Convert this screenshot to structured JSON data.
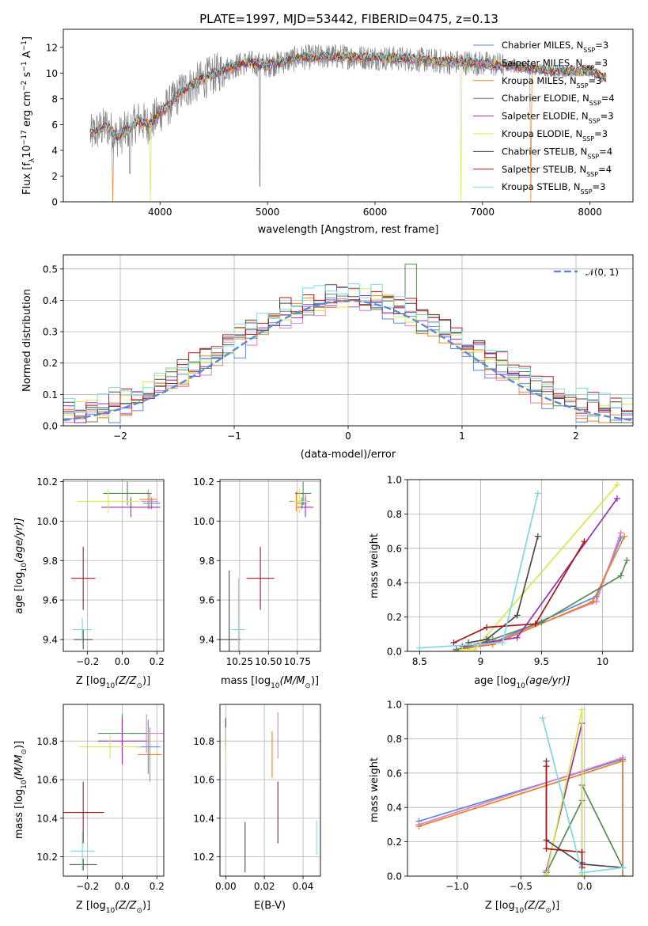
{
  "figure_title": "PLATE=1997, MJD=53442, FIBERID=0475, z=0.13",
  "legend_entries": [
    {
      "name": "Chabrier MILES, N",
      "sub": "SSP",
      "suffix": "=3",
      "color": "#5b8bd8"
    },
    {
      "name": "Salpeter MILES, N",
      "sub": "SSP",
      "suffix": "=3",
      "color": "#e07fc1"
    },
    {
      "name": "Kroupa MILES, N",
      "sub": "SSP",
      "suffix": "=3",
      "color": "#e8822a"
    },
    {
      "name": "Chabrier ELODIE, N",
      "sub": "SSP",
      "suffix": "=4",
      "color": "#5a8a5a"
    },
    {
      "name": "Salpeter ELODIE, N",
      "sub": "SSP",
      "suffix": "=3",
      "color": "#9a2fb0"
    },
    {
      "name": "Kroupa ELODIE, N",
      "sub": "SSP",
      "suffix": "=3",
      "color": "#d8e84a"
    },
    {
      "name": "Chabrier STELIB, N",
      "sub": "SSP",
      "suffix": "=4",
      "color": "#4a4a4a"
    },
    {
      "name": "Salpeter STELIB, N",
      "sub": "SSP",
      "suffix": "=4",
      "color": "#a81818"
    },
    {
      "name": "Kroupa STELIB, N",
      "sub": "SSP",
      "suffix": "=3",
      "color": "#7fd8de"
    }
  ],
  "chart_data": [
    {
      "id": "spectrum",
      "type": "line",
      "xlabel": "wavelength [Angstrom, rest frame]",
      "ylabel_parts": [
        "Flux [f",
        "λ",
        "10",
        "−17",
        " erg cm",
        "−2",
        " s",
        "−1",
        " A",
        "−1",
        "]"
      ],
      "xlim": [
        3100,
        8400
      ],
      "ylim": [
        0,
        13.4
      ],
      "xticks": [
        4000,
        5000,
        6000,
        7000,
        8000
      ],
      "yticks": [
        0,
        2,
        4,
        6,
        8,
        10,
        12
      ],
      "data_color": "#808080",
      "continuum_x": [
        3350,
        3500,
        3600,
        3700,
        3800,
        3900,
        4000,
        4100,
        4200,
        4400,
        4600,
        4800,
        5000,
        5300,
        5600,
        6000,
        6300,
        6600,
        6900,
        7200,
        7500,
        7800,
        8000,
        8150
      ],
      "continuum_y": [
        5.2,
        5.9,
        5.0,
        5.6,
        6.3,
        6.0,
        6.9,
        7.6,
        8.6,
        9.5,
        10.3,
        10.8,
        10.6,
        11.2,
        11.3,
        11.2,
        11.1,
        10.9,
        10.8,
        10.6,
        10.3,
        10.1,
        10.2,
        9.6
      ],
      "data_span_x": [
        3350,
        8150
      ],
      "model_span_x": [
        3350,
        8150
      ],
      "series_dips": [
        {
          "series": "Kroupa MILES",
          "x": 3560,
          "y": 0
        },
        {
          "series": "Kroupa ELODIE",
          "x": 3910,
          "y": 0
        },
        {
          "series": "Kroupa ELODIE",
          "x": 6800,
          "y": 0
        },
        {
          "series": "Kroupa MILES",
          "x": 7450,
          "y": 0
        }
      ]
    },
    {
      "id": "residuals",
      "type": "step",
      "xlabel": "(data-model)/error",
      "ylabel": "Normed distribution",
      "xlim": [
        -2.5,
        2.5
      ],
      "ylim": [
        0,
        0.545
      ],
      "xticks": [
        -2,
        -1,
        0,
        1,
        2
      ],
      "yticks": [
        0,
        0.1,
        0.2,
        0.3,
        0.4,
        0.5
      ],
      "bin_width": 0.1,
      "histogram_series_count": 9,
      "reference_curve": {
        "name": "N(0,1)",
        "label_math": "𝒩(0, 1)",
        "mean": 0,
        "sigma": 1,
        "color": "#5b8bd8",
        "dashed": true
      },
      "legend_position": "upper right"
    },
    {
      "id": "age_vs_Z",
      "type": "errorbar",
      "xlabel_parts": [
        "Z [log",
        "10",
        "(Z/Z",
        "⊙",
        ")]"
      ],
      "ylabel_parts": [
        "age  [log",
        "10",
        "(age/yr)]"
      ],
      "xlim": [
        -0.34,
        0.24
      ],
      "ylim": [
        9.34,
        10.21
      ],
      "xticks": [
        -0.2,
        0.0,
        0.2
      ],
      "xtick_labels": [
        "−0.2",
        "0.0",
        "0.2"
      ],
      "yticks": [
        9.4,
        9.6,
        9.8,
        10.0,
        10.2
      ],
      "points": [
        {
          "series": "Chabrier MILES",
          "x": 0.17,
          "y": 10.09,
          "xerr": 0.05,
          "yerr": 0.03
        },
        {
          "series": "Salpeter MILES",
          "x": 0.16,
          "y": 10.1,
          "xerr": 0.05,
          "yerr": 0.04
        },
        {
          "series": "Kroupa MILES",
          "x": 0.15,
          "y": 10.11,
          "xerr": 0.05,
          "yerr": 0.05
        },
        {
          "series": "Chabrier ELODIE",
          "x": 0.03,
          "y": 10.14,
          "xerr": 0.14,
          "yerr": 0.06
        },
        {
          "series": "Salpeter ELODIE",
          "x": 0.05,
          "y": 10.07,
          "xerr": 0.17,
          "yerr": 0.05
        },
        {
          "series": "Kroupa ELODIE",
          "x": -0.08,
          "y": 10.1,
          "xerr": 0.18,
          "yerr": 0.06
        },
        {
          "series": "Chabrier STELIB",
          "x": -0.225,
          "y": 9.4,
          "xerr": 0.055,
          "yerr": 0.05
        },
        {
          "series": "Salpeter STELIB",
          "x": -0.225,
          "y": 9.71,
          "xerr": 0.07,
          "yerr": 0.16
        },
        {
          "series": "Kroupa STELIB",
          "x": -0.23,
          "y": 9.45,
          "xerr": 0.055,
          "yerr": 0.06
        }
      ]
    },
    {
      "id": "age_vs_mass",
      "type": "errorbar",
      "xlabel_parts": [
        "mass [log",
        "10",
        "(M/M",
        "⊙",
        ")]"
      ],
      "ylabel": "",
      "xlim": [
        10.08,
        10.95
      ],
      "ylim": [
        9.34,
        10.21
      ],
      "xticks": [
        10.25,
        10.5,
        10.75
      ],
      "xtick_labels": [
        "10.25",
        "10.50",
        "10.75"
      ],
      "yticks": [
        9.4,
        9.6,
        9.8,
        10.0,
        10.2
      ],
      "points": [
        {
          "series": "Chabrier MILES",
          "x": 10.79,
          "y": 10.09,
          "xerr": 0.04,
          "yerr": 0.03
        },
        {
          "series": "Salpeter MILES",
          "x": 10.82,
          "y": 10.1,
          "xerr": 0.04,
          "yerr": 0.04
        },
        {
          "series": "Kroupa MILES",
          "x": 10.74,
          "y": 10.1,
          "xerr": 0.06,
          "yerr": 0.05
        },
        {
          "series": "Chabrier ELODIE",
          "x": 10.8,
          "y": 10.14,
          "xerr": 0.07,
          "yerr": 0.06
        },
        {
          "series": "Salpeter ELODIE",
          "x": 10.82,
          "y": 10.07,
          "xerr": 0.07,
          "yerr": 0.05
        },
        {
          "series": "Kroupa ELODIE",
          "x": 10.77,
          "y": 10.1,
          "xerr": 0.06,
          "yerr": 0.06
        },
        {
          "series": "Chabrier STELIB",
          "x": 10.16,
          "y": 9.4,
          "xerr": 0.1,
          "yerr": 0.35
        },
        {
          "series": "Salpeter STELIB",
          "x": 10.43,
          "y": 9.71,
          "xerr": 0.12,
          "yerr": 0.16
        },
        {
          "series": "Kroupa STELIB",
          "x": 10.24,
          "y": 9.45,
          "xerr": 0.06,
          "yerr": 0.26
        }
      ]
    },
    {
      "id": "weight_vs_age",
      "type": "line",
      "xlabel_parts": [
        "age  [log",
        "10",
        "(age/yr)]"
      ],
      "ylabel": "mass weight",
      "xlim": [
        8.4,
        10.25
      ],
      "ylim": [
        0,
        1.0
      ],
      "xticks": [
        8.5,
        9.0,
        9.5,
        10.0
      ],
      "yticks": [
        0,
        0.2,
        0.4,
        0.6,
        0.8,
        1.0
      ],
      "series": [
        {
          "name": "Chabrier MILES",
          "x": [
            8.8,
            9.1,
            9.95,
            10.15
          ],
          "y": [
            0.01,
            0.05,
            0.32,
            0.66
          ]
        },
        {
          "name": "Salpeter MILES",
          "x": [
            8.78,
            9.1,
            9.95,
            10.15
          ],
          "y": [
            0.0,
            0.05,
            0.29,
            0.69
          ]
        },
        {
          "name": "Kroupa MILES",
          "x": [
            8.8,
            9.1,
            9.92,
            10.18
          ],
          "y": [
            0.01,
            0.04,
            0.29,
            0.67
          ]
        },
        {
          "name": "Chabrier ELODIE",
          "x": [
            8.8,
            9.1,
            9.5,
            10.15,
            10.2
          ],
          "y": [
            0.01,
            0.07,
            0.17,
            0.44,
            0.53
          ]
        },
        {
          "name": "Salpeter ELODIE",
          "x": [
            8.85,
            9.3,
            10.12
          ],
          "y": [
            0.03,
            0.08,
            0.89
          ]
        },
        {
          "name": "Kroupa ELODIE",
          "x": [
            8.85,
            8.95,
            10.12
          ],
          "y": [
            0.01,
            0.01,
            0.97
          ]
        },
        {
          "name": "Chabrier STELIB",
          "x": [
            8.9,
            9.05,
            9.3,
            9.47
          ],
          "y": [
            0.05,
            0.07,
            0.21,
            0.67
          ]
        },
        {
          "name": "Salpeter STELIB",
          "x": [
            8.78,
            9.05,
            9.45,
            9.85
          ],
          "y": [
            0.05,
            0.14,
            0.16,
            0.64
          ]
        },
        {
          "name": "Kroupa STELIB",
          "x": [
            8.5,
            9.18,
            9.47
          ],
          "y": [
            0.02,
            0.05,
            0.92
          ]
        }
      ]
    },
    {
      "id": "mass_vs_Z",
      "type": "errorbar",
      "xlabel_parts": [
        "Z [log",
        "10",
        "(Z/Z",
        "⊙",
        ")]"
      ],
      "ylabel_parts": [
        "mass [log",
        "10",
        "(M/M",
        "⊙",
        ")]"
      ],
      "xlim": [
        -0.34,
        0.24
      ],
      "ylim": [
        10.1,
        10.99
      ],
      "xticks": [
        -0.2,
        0.0,
        0.2
      ],
      "xtick_labels": [
        "−0.2",
        "0.0",
        "0.2"
      ],
      "yticks": [
        10.2,
        10.4,
        10.6,
        10.8
      ],
      "points": [
        {
          "series": "Chabrier MILES",
          "x": 0.15,
          "y": 10.77,
          "xerr": 0.07,
          "yerr": 0.14
        },
        {
          "series": "Salpeter MILES",
          "x": 0.14,
          "y": 10.84,
          "xerr": 0.1,
          "yerr": 0.1
        },
        {
          "series": "Kroupa MILES",
          "x": 0.16,
          "y": 10.73,
          "xerr": 0.07,
          "yerr": 0.14
        },
        {
          "series": "Chabrier ELODIE",
          "x": 0.0,
          "y": 10.84,
          "xerr": 0.14,
          "yerr": 0.1
        },
        {
          "series": "Salpeter ELODIE",
          "x": 0.0,
          "y": 10.8,
          "xerr": 0.14,
          "yerr": 0.12
        },
        {
          "series": "Kroupa ELODIE",
          "x": -0.07,
          "y": 10.77,
          "xerr": 0.18,
          "yerr": 0.06
        },
        {
          "series": "Chabrier STELIB",
          "x": -0.225,
          "y": 10.16,
          "xerr": 0.08,
          "yerr": 0.03
        },
        {
          "series": "Salpeter STELIB",
          "x": -0.225,
          "y": 10.43,
          "xerr": 0.12,
          "yerr": 0.16
        },
        {
          "series": "Kroupa STELIB",
          "x": -0.23,
          "y": 10.23,
          "xerr": 0.07,
          "yerr": 0.1
        }
      ]
    },
    {
      "id": "mass_vs_ebv",
      "type": "errorbar",
      "xlabel": "E(B-V)",
      "ylabel": "",
      "xlim": [
        -0.003,
        0.049
      ],
      "ylim": [
        10.1,
        10.99
      ],
      "xticks": [
        0.0,
        0.02,
        0.04
      ],
      "xtick_labels": [
        "0.00",
        "0.02",
        "0.04"
      ],
      "yticks": [
        10.2,
        10.4,
        10.6,
        10.8
      ],
      "points": [
        {
          "series": "Chabrier MILES",
          "x": 0.0,
          "y": 10.84,
          "xerr": 0,
          "yerr": 0.05
        },
        {
          "series": "Salpeter MILES",
          "x": 0.027,
          "y": 10.83,
          "xerr": 0,
          "yerr": 0.12
        },
        {
          "series": "Kroupa MILES",
          "x": 0.024,
          "y": 10.73,
          "xerr": 0,
          "yerr": 0.12
        },
        {
          "series": "Chabrier ELODIE",
          "x": 0.0,
          "y": 10.84,
          "xerr": 0,
          "yerr": 0.08
        },
        {
          "series": "Salpeter ELODIE",
          "x": 0.0,
          "y": 10.85,
          "xerr": 0,
          "yerr": 0.07
        },
        {
          "series": "Kroupa ELODIE",
          "x": 0.0,
          "y": 10.77,
          "xerr": 0,
          "yerr": 0.1
        },
        {
          "series": "Chabrier STELIB",
          "x": 0.01,
          "y": 10.25,
          "xerr": 0,
          "yerr": 0.13
        },
        {
          "series": "Salpeter STELIB",
          "x": 0.027,
          "y": 10.43,
          "xerr": 0,
          "yerr": 0.16
        },
        {
          "series": "Kroupa STELIB",
          "x": 0.047,
          "y": 10.3,
          "xerr": 0,
          "yerr": 0.09
        }
      ]
    },
    {
      "id": "weight_vs_Z",
      "type": "line",
      "xlabel_parts": [
        "Z [log",
        "10",
        "(Z/Z",
        "⊙",
        ")]"
      ],
      "ylabel": "mass weight",
      "xlim": [
        -1.39,
        0.38
      ],
      "ylim": [
        0,
        1.0
      ],
      "xticks": [
        -1.0,
        -0.5,
        0.0
      ],
      "xtick_labels": [
        "−1.0",
        "−0.5",
        "0.0"
      ],
      "yticks": [
        0,
        0.2,
        0.4,
        0.6,
        0.8,
        1.0
      ],
      "series": [
        {
          "name": "Chabrier MILES",
          "x": [
            -1.3,
            0.3,
            0.3
          ],
          "y": [
            0.32,
            0.68,
            0.0
          ]
        },
        {
          "name": "Salpeter MILES",
          "x": [
            -1.3,
            0.3,
            0.3
          ],
          "y": [
            0.3,
            0.69,
            0.0
          ]
        },
        {
          "name": "Kroupa MILES",
          "x": [
            -1.3,
            0.3,
            0.3
          ],
          "y": [
            0.29,
            0.67,
            0.0
          ]
        },
        {
          "name": "Chabrier ELODIE",
          "x": [
            -0.3,
            -0.3,
            -0.02,
            -0.02,
            0.3
          ],
          "y": [
            0.0,
            0.02,
            0.44,
            0.53,
            0.05
          ]
        },
        {
          "name": "Salpeter ELODIE",
          "x": [
            -0.3,
            -0.02,
            -0.02
          ],
          "y": [
            0.03,
            0.89,
            0.08
          ]
        },
        {
          "name": "Kroupa ELODIE",
          "x": [
            -0.3,
            -0.3,
            -0.02,
            -0.02
          ],
          "y": [
            0.0,
            0.01,
            0.97,
            0.01
          ]
        },
        {
          "name": "Chabrier STELIB",
          "x": [
            -0.3,
            -0.3,
            -0.02,
            0.3
          ],
          "y": [
            0.67,
            0.21,
            0.07,
            0.05
          ]
        },
        {
          "name": "Salpeter STELIB",
          "x": [
            -0.3,
            -0.3,
            -0.02,
            -0.02
          ],
          "y": [
            0.64,
            0.16,
            0.14,
            0.05
          ]
        },
        {
          "name": "Kroupa STELIB",
          "x": [
            -0.33,
            -0.02,
            0.3
          ],
          "y": [
            0.92,
            0.02,
            0.05
          ]
        }
      ]
    }
  ]
}
